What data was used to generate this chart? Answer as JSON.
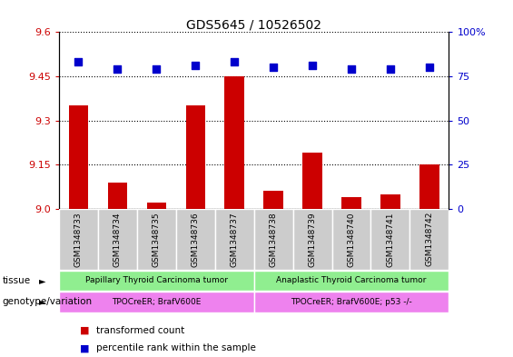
{
  "title": "GDS5645 / 10526502",
  "samples": [
    "GSM1348733",
    "GSM1348734",
    "GSM1348735",
    "GSM1348736",
    "GSM1348737",
    "GSM1348738",
    "GSM1348739",
    "GSM1348740",
    "GSM1348741",
    "GSM1348742"
  ],
  "transformed_count": [
    9.35,
    9.09,
    9.02,
    9.35,
    9.45,
    9.06,
    9.19,
    9.04,
    9.05,
    9.15
  ],
  "percentile_rank": [
    83,
    79,
    79,
    81,
    83,
    80,
    81,
    79,
    79,
    80
  ],
  "ylim_left": [
    9.0,
    9.6
  ],
  "ylim_right": [
    0,
    100
  ],
  "yticks_left": [
    9.0,
    9.15,
    9.3,
    9.45,
    9.6
  ],
  "yticks_right": [
    0,
    25,
    50,
    75,
    100
  ],
  "ytick_labels_right": [
    "0",
    "25",
    "50",
    "75",
    "100%"
  ],
  "bar_color": "#cc0000",
  "dot_color": "#0000cc",
  "left_tick_color": "#cc0000",
  "right_tick_color": "#0000cc",
  "tissue_labels": [
    "Papillary Thyroid Carcinoma tumor",
    "Anaplastic Thyroid Carcinoma tumor"
  ],
  "tissue_color": "#90ee90",
  "genotype_labels": [
    "TPOCreER; BrafV600E",
    "TPOCreER; BrafV600E; p53 -/-"
  ],
  "genotype_color": "#ee82ee",
  "legend_bar_label": "transformed count",
  "legend_dot_label": "percentile rank within the sample",
  "tissue_row_label": "tissue",
  "genotype_row_label": "genotype/variation",
  "bar_width": 0.5,
  "dot_size": 30,
  "sample_box_color": "#cccccc"
}
